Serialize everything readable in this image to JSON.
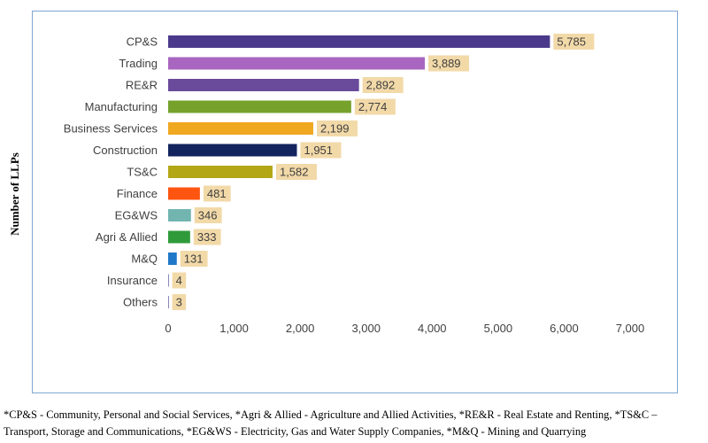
{
  "chart_data": {
    "type": "bar",
    "orientation": "horizontal",
    "categories": [
      "CP&S",
      "Trading",
      "RE&R",
      "Manufacturing",
      "Business Services",
      "Construction",
      "TS&C",
      "Finance",
      "EG&WS",
      "Agri & Allied",
      "M&Q",
      "Insurance",
      "Others"
    ],
    "values": [
      5785,
      3889,
      2892,
      2774,
      2199,
      1951,
      1582,
      481,
      346,
      333,
      131,
      4,
      3
    ],
    "value_labels": [
      "5,785",
      "3,889",
      "2,892",
      "2,774",
      "2,199",
      "1,951",
      "1,582",
      "481",
      "346",
      "333",
      "131",
      "4",
      "3"
    ],
    "colors": [
      "#4b3a8c",
      "#a866c0",
      "#6a4a9a",
      "#76a22c",
      "#f0a820",
      "#13235e",
      "#b3a716",
      "#ff5511",
      "#72b5b0",
      "#2f9a3a",
      "#1f77c8",
      "#3a3a8a",
      "#3a3a8a"
    ],
    "label_bg_color": "#f2d9a8",
    "xlim": [
      0,
      7000
    ],
    "xticks": [
      0,
      1000,
      2000,
      3000,
      4000,
      5000,
      6000,
      7000
    ],
    "xtick_labels": [
      "0",
      "1,000",
      "2,000",
      "3,000",
      "4,000",
      "5,000",
      "6,000",
      "7,000"
    ],
    "ylabel": "Number of LLPs",
    "grid": false
  },
  "footnote": "*CP&S - Community, Personal and Social Services, *Agri & Allied - Agriculture and Allied Activities, *RE&R - Real Estate and Renting, *TS&C – Transport, Storage and Communications, *EG&WS - Electricity, Gas and Water Supply Companies, *M&Q - Mining and Quarrying"
}
